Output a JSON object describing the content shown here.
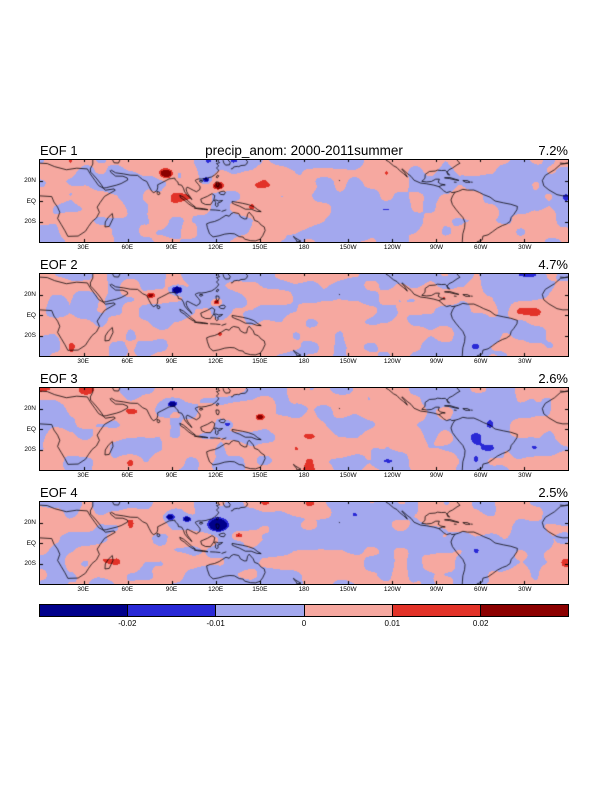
{
  "title": "precip_anom: 2000-2011summer",
  "panels": [
    {
      "label": "EOF 1",
      "variance": "7.2%"
    },
    {
      "label": "EOF 2",
      "variance": "4.7%"
    },
    {
      "label": "EOF 3",
      "variance": "2.6%"
    },
    {
      "label": "EOF 4",
      "variance": "2.5%"
    }
  ],
  "axes": {
    "x_ticks": [
      "30E",
      "60E",
      "90E",
      "120E",
      "150E",
      "180",
      "150W",
      "120W",
      "90W",
      "60W",
      "30W"
    ],
    "y_ticks": [
      "20N",
      "EQ",
      "20S"
    ]
  },
  "colorbar": {
    "tick_labels": [
      "-0.02",
      "-0.01",
      "0",
      "0.01",
      "0.02"
    ],
    "segments": [
      {
        "color": "#00008b",
        "range": "below -0.02"
      },
      {
        "color": "#2929d6",
        "range": "-0.02 to -0.01"
      },
      {
        "color": "#a3a8ee",
        "range": "-0.01 to 0"
      },
      {
        "color": "#f6a8a0",
        "range": "0 to 0.01"
      },
      {
        "color": "#e23228",
        "range": "0.01 to 0.02"
      },
      {
        "color": "#8b0000",
        "range": "above 0.02"
      }
    ]
  },
  "chart_data": {
    "type": "heatmap",
    "title": "precip_anom: 2000-2011summer",
    "panels": [
      {
        "label": "EOF 1",
        "variance_explained_pct": 7.2
      },
      {
        "label": "EOF 2",
        "variance_explained_pct": 4.7
      },
      {
        "label": "EOF 3",
        "variance_explained_pct": 2.6
      },
      {
        "label": "EOF 4",
        "variance_explained_pct": 2.5
      }
    ],
    "x_axis": {
      "tick_labels": [
        "30E",
        "60E",
        "90E",
        "120E",
        "150E",
        "180",
        "150W",
        "120W",
        "90W",
        "60W",
        "30W"
      ],
      "range_deg_east": [
        0,
        360
      ]
    },
    "y_axis": {
      "tick_labels": [
        "20N",
        "EQ",
        "20S"
      ],
      "range_deg_lat": [
        -40,
        40
      ]
    },
    "colorbar_levels": [
      -0.02,
      -0.01,
      0,
      0.01,
      0.02
    ],
    "colorbar_colors": [
      "#00008b",
      "#2929d6",
      "#a3a8ee",
      "#f6a8a0",
      "#e23228",
      "#8b0000"
    ],
    "legend_position": "bottom",
    "grid": false
  }
}
